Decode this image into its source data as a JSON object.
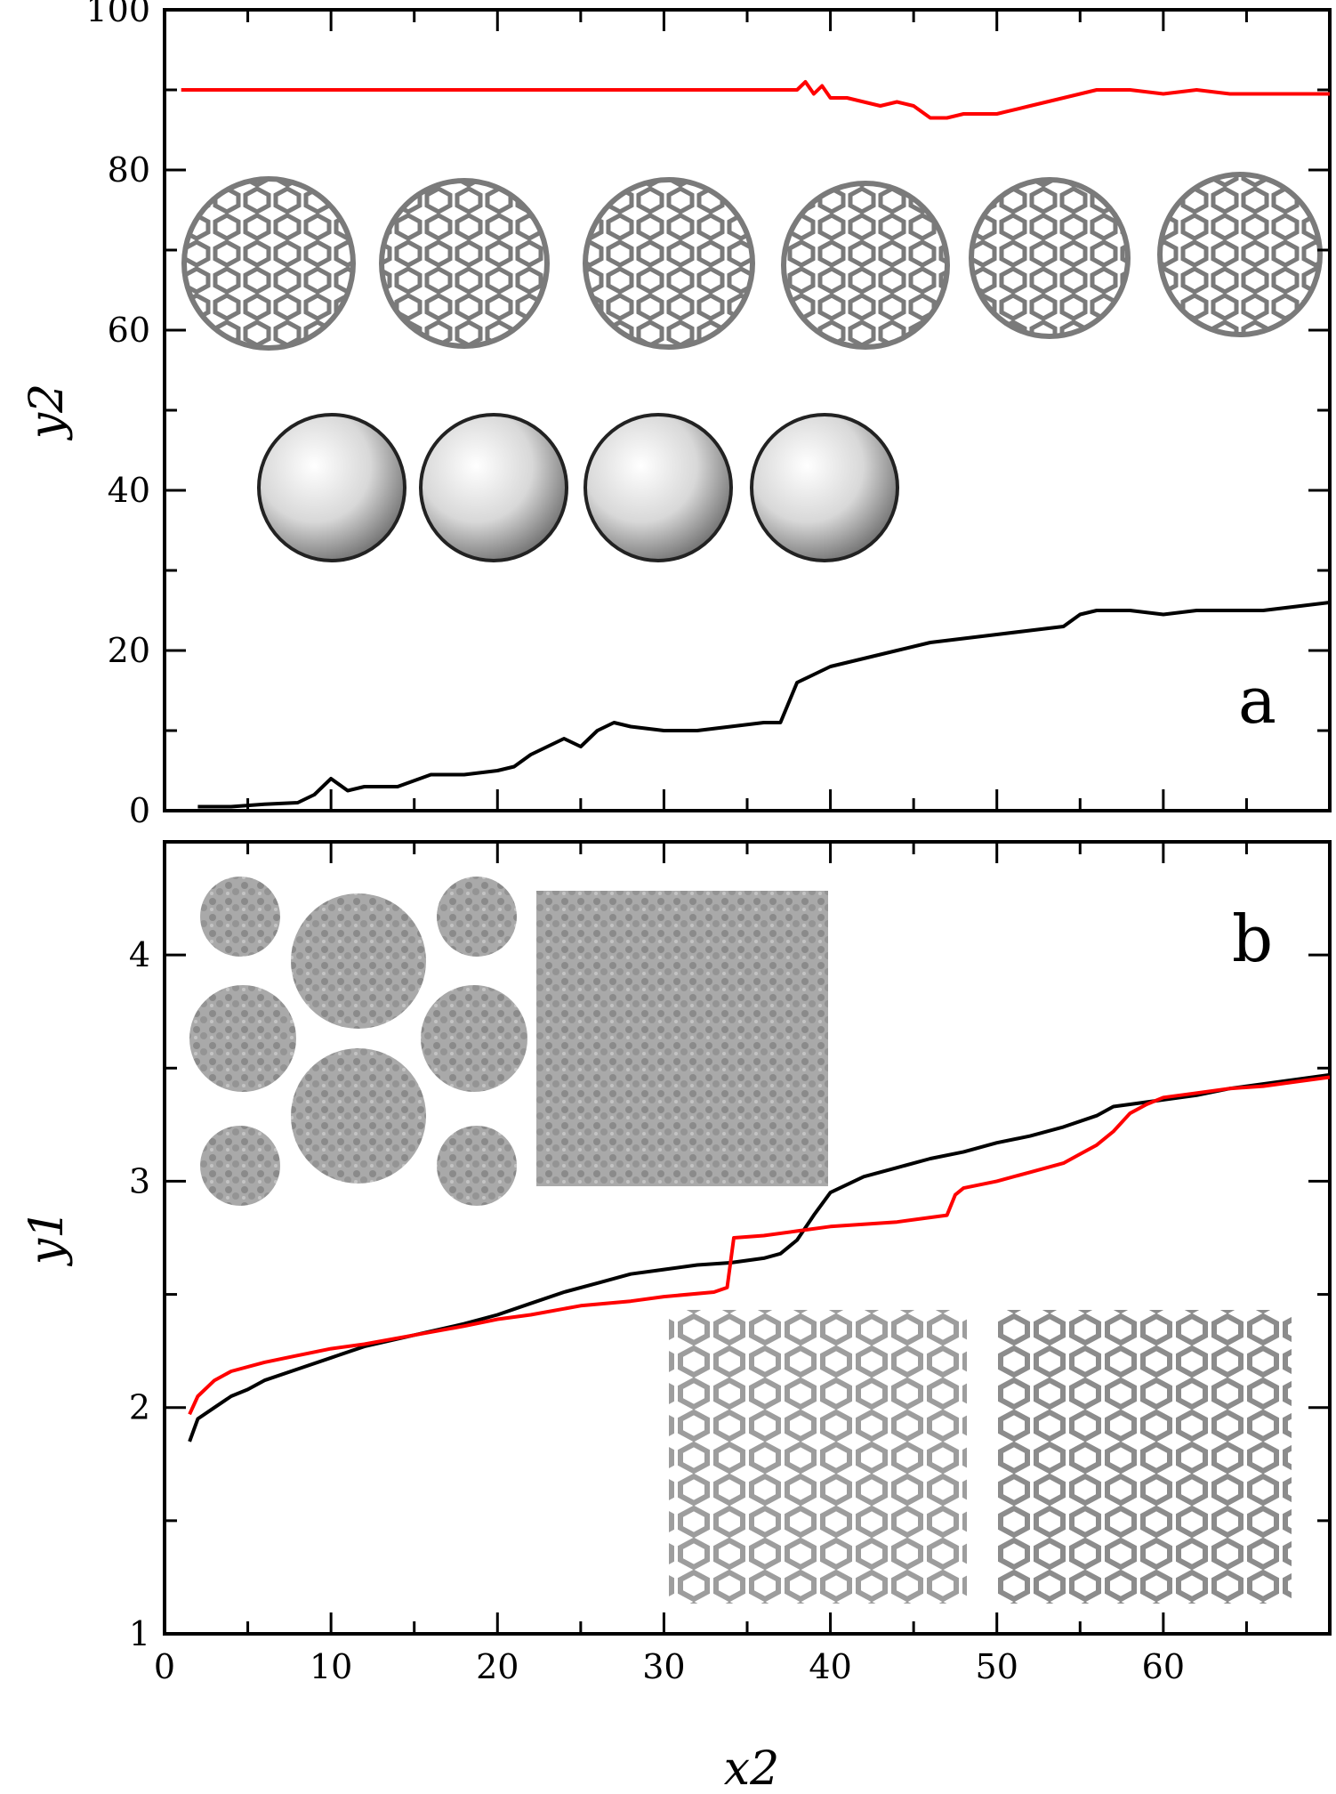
{
  "chart_data": [
    {
      "panel": "a",
      "type": "line",
      "panel_label": "a",
      "xlabel": "",
      "ylabel": "y2",
      "xlim": [
        0,
        70
      ],
      "ylim": [
        0,
        100
      ],
      "x_ticks": [],
      "y_ticks": [
        0,
        20,
        40,
        60,
        80,
        100
      ],
      "grid": false,
      "series": [
        {
          "color": "#ff0000",
          "x": [
            1,
            10,
            20,
            30,
            38,
            38.5,
            39,
            39.5,
            40,
            41,
            42,
            43,
            44,
            45,
            46,
            47,
            48,
            50,
            52,
            54,
            56,
            58,
            60,
            62,
            64,
            66,
            68,
            70
          ],
          "y": [
            90,
            90,
            90,
            90,
            90,
            91,
            89.5,
            90.5,
            89,
            89,
            88.5,
            88,
            88.5,
            88,
            86.5,
            86.5,
            87,
            87,
            88,
            89,
            90,
            90,
            89.5,
            90,
            89.5,
            89.5,
            89.5,
            89.5
          ]
        },
        {
          "color": "#000000",
          "x": [
            2,
            4,
            6,
            8,
            9,
            10,
            11,
            12,
            14,
            16,
            18,
            20,
            21,
            22,
            23,
            24,
            25,
            26,
            27,
            28,
            30,
            32,
            34,
            36,
            37,
            38,
            39,
            40,
            42,
            44,
            46,
            48,
            50,
            52,
            54,
            55,
            56,
            58,
            60,
            62,
            64,
            66,
            68,
            70
          ],
          "y": [
            0.5,
            0.5,
            0.8,
            1,
            2,
            4,
            2.5,
            3,
            3,
            4.5,
            4.5,
            5,
            5.5,
            7,
            8,
            9,
            8,
            10,
            11,
            10.5,
            10,
            10,
            10.5,
            11,
            11,
            16,
            17,
            18,
            19,
            20,
            21,
            21.5,
            22,
            22.5,
            23,
            24.5,
            25,
            25,
            24.5,
            25,
            25,
            25,
            25.5,
            26
          ]
        }
      ]
    },
    {
      "panel": "b",
      "type": "line",
      "panel_label": "b",
      "xlabel": "x2",
      "ylabel": "y1",
      "xlim": [
        0,
        70
      ],
      "ylim": [
        1,
        4.5
      ],
      "x_ticks": [
        0,
        10,
        20,
        30,
        40,
        50,
        60
      ],
      "y_ticks": [
        1,
        2,
        3,
        4
      ],
      "grid": false,
      "series": [
        {
          "color": "#000000",
          "x": [
            1.5,
            2,
            3,
            4,
            5,
            6,
            8,
            10,
            12,
            15,
            18,
            20,
            22,
            24,
            26,
            28,
            30,
            32,
            34,
            36,
            37,
            38,
            39,
            40,
            42,
            44,
            46,
            48,
            50,
            52,
            54,
            56,
            57,
            58,
            60,
            62,
            64,
            66,
            68,
            70
          ],
          "y": [
            1.85,
            1.95,
            2.0,
            2.05,
            2.08,
            2.12,
            2.17,
            2.22,
            2.27,
            2.32,
            2.37,
            2.41,
            2.46,
            2.51,
            2.55,
            2.59,
            2.61,
            2.63,
            2.64,
            2.66,
            2.68,
            2.74,
            2.85,
            2.95,
            3.02,
            3.06,
            3.1,
            3.13,
            3.17,
            3.2,
            3.24,
            3.29,
            3.33,
            3.34,
            3.36,
            3.38,
            3.41,
            3.43,
            3.45,
            3.47
          ]
        },
        {
          "color": "#ff0000",
          "x": [
            1.5,
            2,
            3,
            4,
            6,
            8,
            10,
            12,
            15,
            18,
            20,
            22,
            25,
            28,
            30,
            33,
            33.8,
            34.2,
            36,
            38,
            40,
            42,
            44,
            46,
            47,
            47.5,
            48,
            50,
            52,
            54,
            55,
            56,
            57,
            58,
            59,
            60,
            62,
            64,
            66,
            68,
            70
          ],
          "y": [
            1.97,
            2.05,
            2.12,
            2.16,
            2.2,
            2.23,
            2.26,
            2.28,
            2.32,
            2.36,
            2.39,
            2.41,
            2.45,
            2.47,
            2.49,
            2.51,
            2.53,
            2.75,
            2.76,
            2.78,
            2.8,
            2.81,
            2.82,
            2.84,
            2.85,
            2.94,
            2.97,
            3.0,
            3.04,
            3.08,
            3.12,
            3.16,
            3.22,
            3.3,
            3.34,
            3.37,
            3.39,
            3.41,
            3.42,
            3.44,
            3.46
          ]
        }
      ]
    }
  ]
}
